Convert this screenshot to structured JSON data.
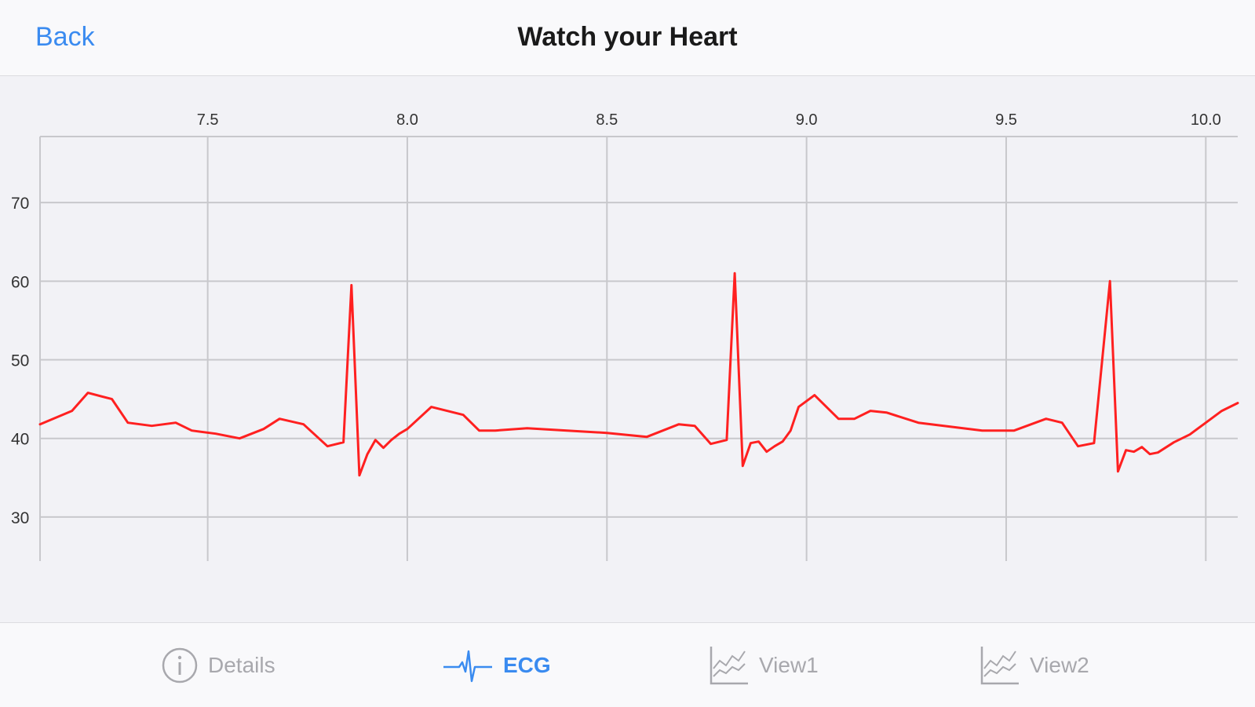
{
  "navbar": {
    "back_label": "Back",
    "title": "Watch your Heart"
  },
  "tabs": [
    {
      "label": "Details",
      "icon": "info-icon",
      "active": false
    },
    {
      "label": "ECG",
      "icon": "ecg-icon",
      "active": true
    },
    {
      "label": "View1",
      "icon": "area-chart-icon",
      "active": false
    },
    {
      "label": "View2",
      "icon": "area-chart-icon",
      "active": false
    }
  ],
  "colors": {
    "accent": "#3a8bf0",
    "series": "#ff2020",
    "grid": "#c8c8cc",
    "inactive": "#a8a8ad"
  },
  "chart_data": {
    "type": "line",
    "title": "",
    "xlabel": "",
    "ylabel": "",
    "xlim": [
      7.08,
      10.08
    ],
    "ylim": [
      24.4,
      78.4
    ],
    "x_ticks": [
      7.5,
      8.0,
      8.5,
      9.0,
      9.5,
      10.0
    ],
    "x_tick_labels": [
      "7.5",
      "8.0",
      "8.5",
      "9.0",
      "9.5",
      "10.0"
    ],
    "y_ticks": [
      30,
      40,
      50,
      60,
      70
    ],
    "y_tick_labels": [
      "30",
      "40",
      "50",
      "60",
      "70"
    ],
    "x_axis_position": "top",
    "grid": true,
    "series": [
      {
        "color": "#ff2020",
        "x": [
          7.08,
          7.16,
          7.2,
          7.26,
          7.3,
          7.36,
          7.42,
          7.46,
          7.52,
          7.58,
          7.64,
          7.68,
          7.74,
          7.8,
          7.84,
          7.86,
          7.88,
          7.9,
          7.92,
          7.94,
          7.96,
          7.98,
          8.0,
          8.06,
          8.14,
          8.18,
          8.22,
          8.3,
          8.4,
          8.5,
          8.6,
          8.68,
          8.72,
          8.76,
          8.8,
          8.82,
          8.84,
          8.86,
          8.88,
          8.9,
          8.92,
          8.94,
          8.96,
          8.98,
          9.02,
          9.08,
          9.12,
          9.16,
          9.2,
          9.28,
          9.36,
          9.44,
          9.52,
          9.6,
          9.64,
          9.68,
          9.72,
          9.76,
          9.78,
          9.8,
          9.82,
          9.84,
          9.86,
          9.88,
          9.92,
          9.96,
          10.0,
          10.04,
          10.08
        ],
        "values": [
          41.8,
          43.5,
          45.8,
          45.0,
          42.0,
          41.6,
          42.0,
          41.0,
          40.6,
          40.0,
          41.2,
          42.5,
          41.8,
          39.0,
          39.5,
          59.5,
          35.3,
          38.0,
          39.8,
          38.8,
          39.8,
          40.6,
          41.2,
          44.0,
          43.0,
          41.0,
          41.0,
          41.3,
          41.0,
          40.7,
          40.2,
          41.8,
          41.6,
          39.3,
          39.8,
          61.0,
          36.5,
          39.4,
          39.6,
          38.3,
          39.0,
          39.6,
          41.0,
          44.0,
          45.5,
          42.5,
          42.5,
          43.5,
          43.3,
          42.0,
          41.5,
          41.0,
          41.0,
          42.5,
          42.0,
          39.0,
          39.4,
          60.0,
          35.8,
          38.5,
          38.3,
          38.9,
          38.0,
          38.2,
          39.5,
          40.5,
          42.0,
          43.5,
          44.5
        ]
      }
    ]
  }
}
